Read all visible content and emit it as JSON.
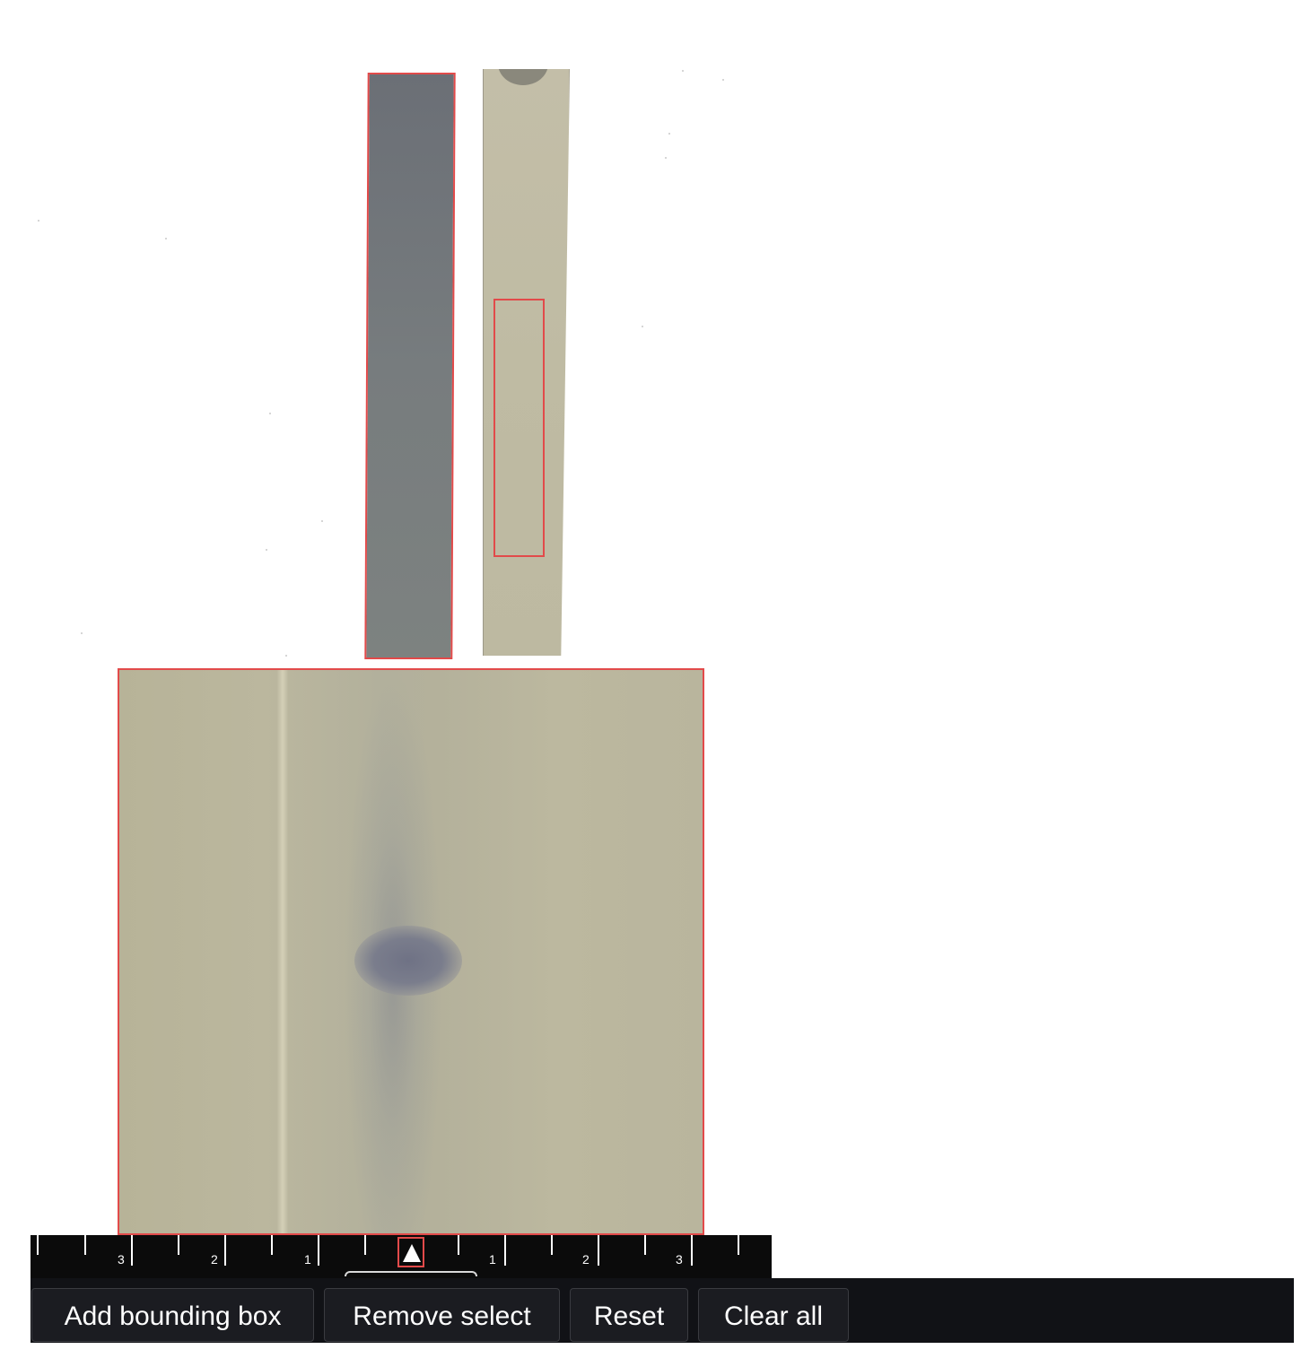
{
  "ruler": {
    "labels": [
      "3",
      "2",
      "1",
      "1",
      "2",
      "3"
    ]
  },
  "toolbar": {
    "add_bounding_box_label": "Add bounding box",
    "remove_select_label": "Remove select",
    "reset_label": "Reset",
    "clear_all_label": "Clear all"
  },
  "colors": {
    "selection_outline": "#e24a4a",
    "toolbar_background": "#111216",
    "ruler_background": "#0b0b0b"
  },
  "icons": {
    "slider_thumb": "triangle-up-icon"
  }
}
